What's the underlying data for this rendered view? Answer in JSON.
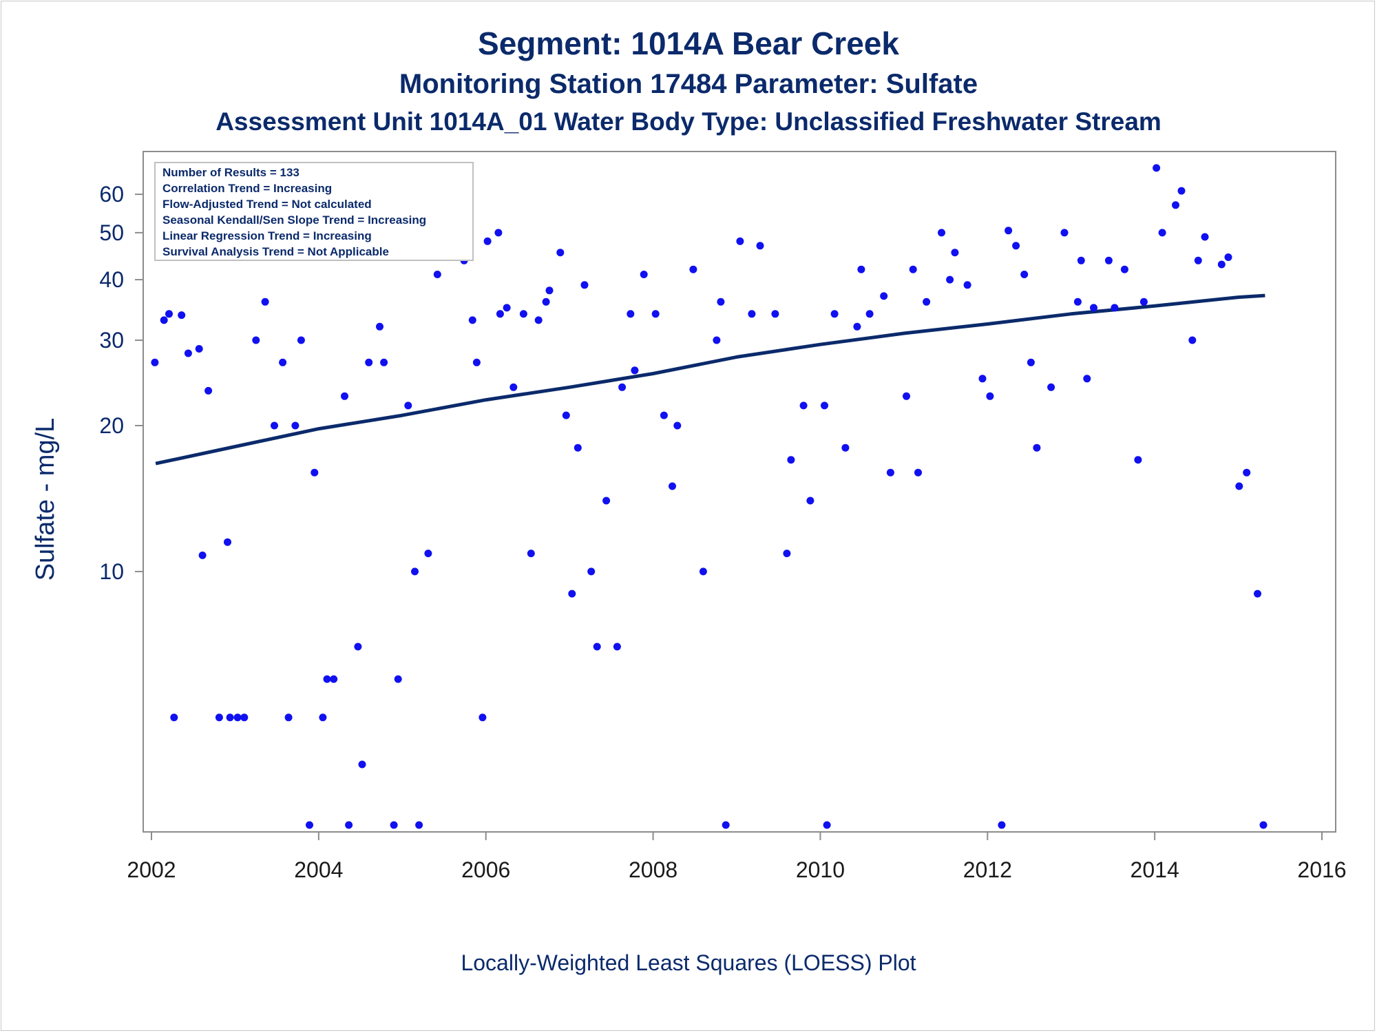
{
  "chart_data": {
    "type": "scatter",
    "title": "Segment: 1014A  Bear Creek",
    "subtitle": "Monitoring Station 17484 Parameter: Sulfate",
    "subtitle2": "Assessment Unit 1014A_01   Water Body Type: Unclassified Freshwater Stream",
    "ylabel": "Sulfate - mg/L",
    "xlabel": "",
    "footnote": "Locally-Weighted Least Squares (LOESS) Plot",
    "y_scale": "log",
    "xlim": [
      2002,
      2016
    ],
    "ylim": [
      3,
      70
    ],
    "x_ticks": [
      2002,
      2004,
      2006,
      2008,
      2010,
      2012,
      2014,
      2016
    ],
    "y_ticks": [
      10,
      20,
      30,
      40,
      50,
      60
    ],
    "grid": false,
    "legend": "none",
    "stats": [
      "Number of Results = 133",
      "Correlation Trend = Increasing",
      "Flow-Adjusted Trend = Not calculated",
      "Seasonal Kendall/Sen Slope Trend = Increasing",
      "Linear Regression Trend = Increasing",
      "Survival Analysis Trend = Not Applicable"
    ],
    "stats_box_position": "top-left",
    "colors": {
      "points": "#1010f0",
      "line": "#0b2a6b",
      "text": "#0b2a6b"
    },
    "points": [
      [
        2002.04,
        27
      ],
      [
        2002.15,
        33
      ],
      [
        2002.21,
        34
      ],
      [
        2002.27,
        5
      ],
      [
        2002.36,
        33.8
      ],
      [
        2002.44,
        28.2
      ],
      [
        2002.57,
        28.8
      ],
      [
        2002.61,
        10.8
      ],
      [
        2002.68,
        23.6
      ],
      [
        2002.81,
        5
      ],
      [
        2002.91,
        11.5
      ],
      [
        2002.94,
        5
      ],
      [
        2003.03,
        5
      ],
      [
        2003.11,
        5
      ],
      [
        2003.25,
        30
      ],
      [
        2003.36,
        36
      ],
      [
        2003.47,
        20
      ],
      [
        2003.57,
        27
      ],
      [
        2003.64,
        5
      ],
      [
        2003.72,
        20
      ],
      [
        2003.79,
        30
      ],
      [
        2003.89,
        3
      ],
      [
        2003.95,
        16
      ],
      [
        2004.05,
        5
      ],
      [
        2004.1,
        6
      ],
      [
        2004.18,
        6
      ],
      [
        2004.31,
        23
      ],
      [
        2004.36,
        3
      ],
      [
        2004.47,
        7
      ],
      [
        2004.52,
        4
      ],
      [
        2004.6,
        27
      ],
      [
        2004.73,
        32
      ],
      [
        2004.78,
        27
      ],
      [
        2004.9,
        3
      ],
      [
        2004.95,
        6
      ],
      [
        2005.07,
        22
      ],
      [
        2005.15,
        10
      ],
      [
        2005.2,
        3
      ],
      [
        2005.31,
        10.9
      ],
      [
        2005.42,
        41
      ],
      [
        2005.74,
        43.8
      ],
      [
        2005.84,
        33
      ],
      [
        2005.89,
        27
      ],
      [
        2005.96,
        5
      ],
      [
        2006.02,
        48
      ],
      [
        2006.15,
        50
      ],
      [
        2006.17,
        34
      ],
      [
        2006.25,
        35
      ],
      [
        2006.33,
        24
      ],
      [
        2006.45,
        34
      ],
      [
        2006.54,
        10.9
      ],
      [
        2006.63,
        33
      ],
      [
        2006.72,
        36
      ],
      [
        2006.76,
        38
      ],
      [
        2006.89,
        45.5
      ],
      [
        2006.96,
        21
      ],
      [
        2007.03,
        9
      ],
      [
        2007.1,
        18
      ],
      [
        2007.18,
        39
      ],
      [
        2007.26,
        10
      ],
      [
        2007.33,
        7
      ],
      [
        2007.44,
        14
      ],
      [
        2007.57,
        7
      ],
      [
        2007.63,
        24
      ],
      [
        2007.73,
        34
      ],
      [
        2007.78,
        26
      ],
      [
        2007.89,
        41
      ],
      [
        2008.03,
        34
      ],
      [
        2008.13,
        21
      ],
      [
        2008.23,
        15
      ],
      [
        2008.29,
        20
      ],
      [
        2008.48,
        42
      ],
      [
        2008.6,
        10
      ],
      [
        2008.76,
        30
      ],
      [
        2008.81,
        36
      ],
      [
        2008.87,
        3
      ],
      [
        2009.04,
        48
      ],
      [
        2009.18,
        34
      ],
      [
        2009.28,
        47
      ],
      [
        2009.46,
        34
      ],
      [
        2009.6,
        10.9
      ],
      [
        2009.65,
        17
      ],
      [
        2009.8,
        22
      ],
      [
        2009.88,
        14
      ],
      [
        2010.05,
        22
      ],
      [
        2010.08,
        3
      ],
      [
        2010.17,
        34
      ],
      [
        2010.3,
        18
      ],
      [
        2010.44,
        32
      ],
      [
        2010.49,
        42
      ],
      [
        2010.59,
        34
      ],
      [
        2010.76,
        37
      ],
      [
        2010.84,
        16
      ],
      [
        2011.03,
        23
      ],
      [
        2011.11,
        42
      ],
      [
        2011.17,
        16
      ],
      [
        2011.27,
        36
      ],
      [
        2011.45,
        50
      ],
      [
        2011.55,
        40
      ],
      [
        2011.61,
        45.5
      ],
      [
        2011.76,
        39
      ],
      [
        2011.94,
        25
      ],
      [
        2012.03,
        23
      ],
      [
        2012.17,
        3
      ],
      [
        2012.25,
        50.5
      ],
      [
        2012.34,
        47
      ],
      [
        2012.44,
        41
      ],
      [
        2012.52,
        27
      ],
      [
        2012.59,
        18
      ],
      [
        2012.76,
        24
      ],
      [
        2012.92,
        50
      ],
      [
        2013.08,
        36
      ],
      [
        2013.12,
        43.8
      ],
      [
        2013.19,
        25
      ],
      [
        2013.27,
        35
      ],
      [
        2013.45,
        43.8
      ],
      [
        2013.52,
        35
      ],
      [
        2013.64,
        42
      ],
      [
        2013.8,
        17
      ],
      [
        2013.87,
        36
      ],
      [
        2014.02,
        68
      ],
      [
        2014.09,
        50
      ],
      [
        2014.25,
        57
      ],
      [
        2014.32,
        61
      ],
      [
        2014.45,
        30
      ],
      [
        2014.52,
        43.8
      ],
      [
        2014.6,
        49
      ],
      [
        2014.8,
        43
      ],
      [
        2014.88,
        44.5
      ],
      [
        2015.01,
        15
      ],
      [
        2015.1,
        16
      ],
      [
        2015.23,
        9
      ],
      [
        2015.3,
        3
      ]
    ],
    "trend_line": [
      [
        2002.05,
        16.7
      ],
      [
        2003,
        18.1
      ],
      [
        2004,
        19.7
      ],
      [
        2005,
        21.0
      ],
      [
        2006,
        22.6
      ],
      [
        2007,
        24.0
      ],
      [
        2008,
        25.6
      ],
      [
        2009,
        27.7
      ],
      [
        2010,
        29.4
      ],
      [
        2011,
        31.0
      ],
      [
        2012,
        32.4
      ],
      [
        2013,
        34.0
      ],
      [
        2014,
        35.3
      ],
      [
        2015,
        36.8
      ],
      [
        2015.32,
        37.1
      ]
    ]
  }
}
